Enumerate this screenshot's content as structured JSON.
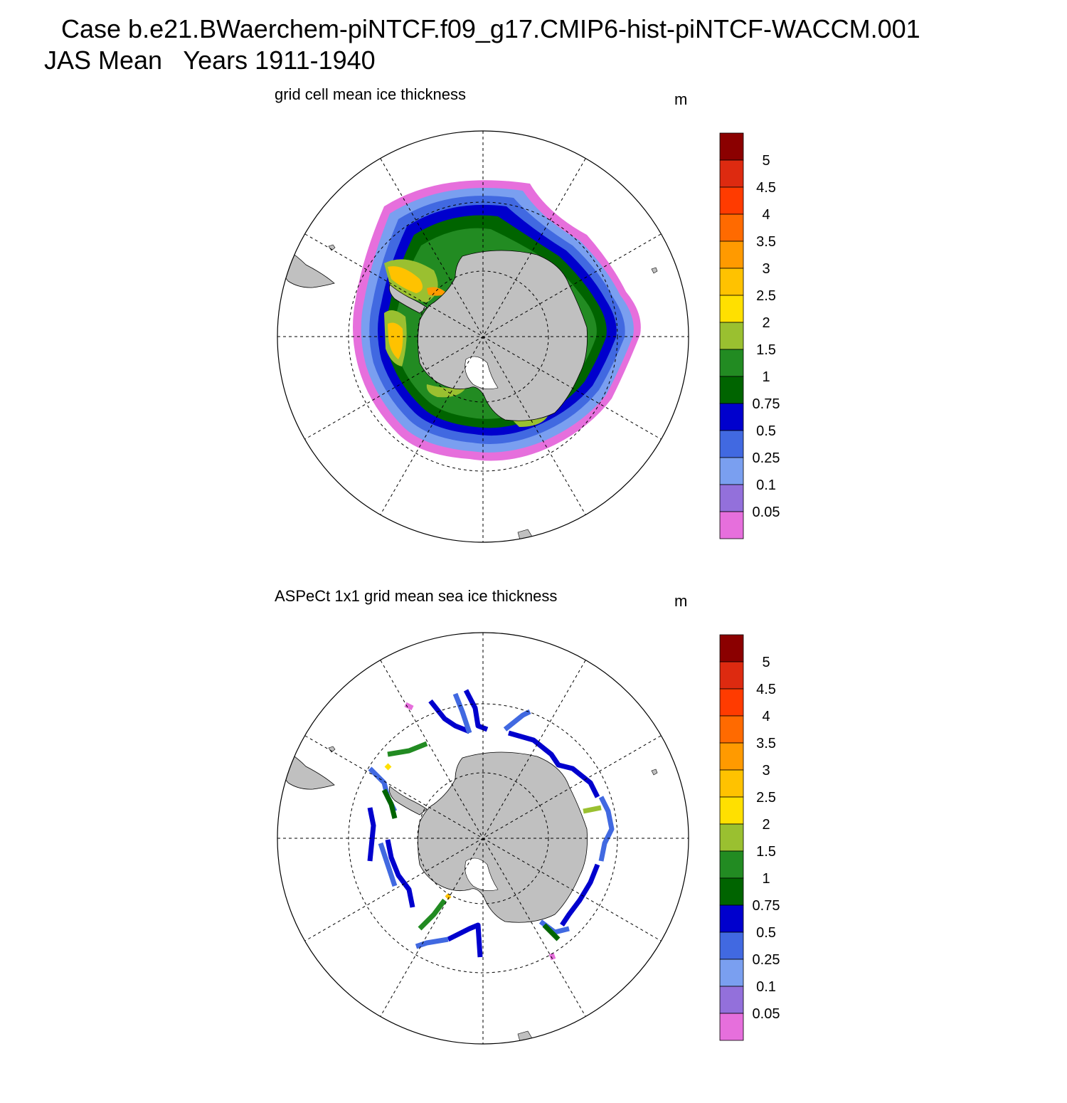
{
  "header": {
    "case_line": "Case b.e21.BWaerchem-piNTCF.f09_g17.CMIP6-hist-piNTCF-WACCM.001",
    "period_line": "JAS Mean   Years 1911-1940"
  },
  "panels": [
    {
      "title": "grid cell mean ice thickness",
      "unit": "m"
    },
    {
      "title": "ASPeCt 1x1 grid mean sea ice thickness",
      "unit": "m"
    }
  ],
  "colorbar": {
    "labels": [
      "5",
      "4.5",
      "4",
      "3.5",
      "3",
      "2.5",
      "2",
      "1.5",
      "1",
      "0.75",
      "0.5",
      "0.25",
      "0.1",
      "0.05"
    ],
    "colors": [
      "#8b0000",
      "#dd2a10",
      "#ff3b00",
      "#ff6a00",
      "#ff9a00",
      "#ffc200",
      "#ffe000",
      "#9ac030",
      "#228b22",
      "#006400",
      "#0000cd",
      "#4169e1",
      "#7a9ff0",
      "#9370db",
      "#e66fdc"
    ]
  },
  "map": {
    "land_color": "#c0c0c0",
    "ocean_color": "#ffffff",
    "grid_style": "dashed"
  }
}
